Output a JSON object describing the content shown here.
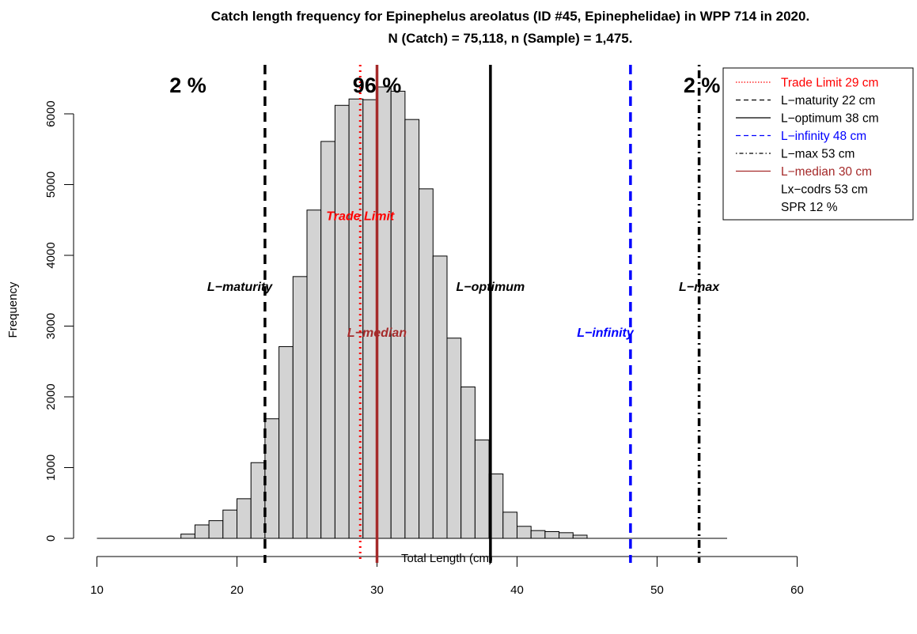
{
  "chart_data": {
    "type": "bar",
    "title": "Catch length frequency for Epinephelus areolatus (ID #45, Epinephelidae) in WPP 714 in 2020.",
    "subtitle": "N (Catch) = 75,118, n (Sample) = 1,475.",
    "xlabel": "Total Length (cm)",
    "ylabel": "Frequency",
    "xlim": [
      10,
      60
    ],
    "ylim": [
      0,
      6500
    ],
    "x_ticks": [
      10,
      20,
      30,
      40,
      50,
      60
    ],
    "y_ticks": [
      0,
      1000,
      2000,
      3000,
      4000,
      5000,
      6000
    ],
    "bin_width": 1,
    "bins": [
      {
        "x0": 16,
        "value": 60
      },
      {
        "x0": 17,
        "value": 190
      },
      {
        "x0": 18,
        "value": 250
      },
      {
        "x0": 19,
        "value": 400
      },
      {
        "x0": 20,
        "value": 560
      },
      {
        "x0": 21,
        "value": 1070
      },
      {
        "x0": 22,
        "value": 1690
      },
      {
        "x0": 23,
        "value": 2710
      },
      {
        "x0": 24,
        "value": 3700
      },
      {
        "x0": 25,
        "value": 4640
      },
      {
        "x0": 26,
        "value": 5610
      },
      {
        "x0": 27,
        "value": 6120
      },
      {
        "x0": 28,
        "value": 6210
      },
      {
        "x0": 29,
        "value": 6200
      },
      {
        "x0": 30,
        "value": 6380
      },
      {
        "x0": 31,
        "value": 6320
      },
      {
        "x0": 32,
        "value": 5920
      },
      {
        "x0": 33,
        "value": 4940
      },
      {
        "x0": 34,
        "value": 3990
      },
      {
        "x0": 35,
        "value": 2830
      },
      {
        "x0": 36,
        "value": 2140
      },
      {
        "x0": 37,
        "value": 1390
      },
      {
        "x0": 38,
        "value": 910
      },
      {
        "x0": 39,
        "value": 370
      },
      {
        "x0": 40,
        "value": 170
      },
      {
        "x0": 41,
        "value": 110
      },
      {
        "x0": 42,
        "value": 95
      },
      {
        "x0": 43,
        "value": 80
      },
      {
        "x0": 44,
        "value": 45
      }
    ],
    "baseline_range": [
      10,
      55
    ],
    "reference_lines": [
      {
        "name": "Trade Limit",
        "legend": "Trade Limit 29 cm",
        "x": 28.8,
        "color": "#ff0000",
        "style": "dotted",
        "width": 3,
        "label": "Trade Limit",
        "label_x": 28.8,
        "label_y": 4500
      },
      {
        "name": "L-maturity",
        "legend": "L−maturity 22 cm",
        "x": 22,
        "color": "#000000",
        "style": "dashed",
        "width": 3.5,
        "label": "L−maturity",
        "label_x": 20.2,
        "label_y": 3500
      },
      {
        "name": "L-optimum",
        "legend": "L−optimum 38 cm",
        "x": 38.1,
        "color": "#000000",
        "style": "solid",
        "width": 3.5,
        "label": "L−optimum",
        "label_x": 38.1,
        "label_y": 3500
      },
      {
        "name": "L-infinity",
        "legend": "L−infinity 48 cm",
        "x": 48.1,
        "color": "#0000ff",
        "style": "dashed",
        "width": 3.5,
        "label": "L−infinity",
        "label_x": 46.3,
        "label_y": 2850
      },
      {
        "name": "L-max",
        "legend": "L−max 53 cm",
        "x": 53,
        "color": "#000000",
        "style": "dotdash",
        "width": 3.5,
        "label": "L−max",
        "label_x": 53,
        "label_y": 3500
      },
      {
        "name": "L-median",
        "legend": "L−median 30 cm",
        "x": 30,
        "color": "#a52a2a",
        "style": "solid",
        "width": 3.5,
        "label": "L−median",
        "label_x": 30,
        "label_y": 2850
      }
    ],
    "percent_labels": [
      {
        "text": "2 %",
        "x": 16.5
      },
      {
        "text": "96 %",
        "x": 30
      },
      {
        "text": "2 %",
        "x": 53.2
      }
    ],
    "legend": {
      "position": "top-right",
      "entries": [
        {
          "text": "Trade Limit 29 cm",
          "color": "#ff0000",
          "line_color": "#ff0000",
          "style": "dotted"
        },
        {
          "text": "L−maturity 22 cm",
          "color": "#000000",
          "line_color": "#000000",
          "style": "dashed"
        },
        {
          "text": "L−optimum 38 cm",
          "color": "#000000",
          "line_color": "#000000",
          "style": "solid"
        },
        {
          "text": "L−infinity 48 cm",
          "color": "#0000ff",
          "line_color": "#0000ff",
          "style": "dashed"
        },
        {
          "text": "L−max 53 cm",
          "color": "#000000",
          "line_color": "#000000",
          "style": "dotdash"
        },
        {
          "text": "L−median 30 cm",
          "color": "#a52a2a",
          "line_color": "#a52a2a",
          "style": "solid"
        },
        {
          "text": "Lx−codrs 53 cm",
          "color": "#000000",
          "line_color": null,
          "style": "none"
        },
        {
          "text": "SPR 12 %",
          "color": "#000000",
          "line_color": null,
          "style": "none"
        }
      ]
    },
    "colors": {
      "bar_fill": "#d3d3d3",
      "bar_stroke": "#000000"
    }
  }
}
